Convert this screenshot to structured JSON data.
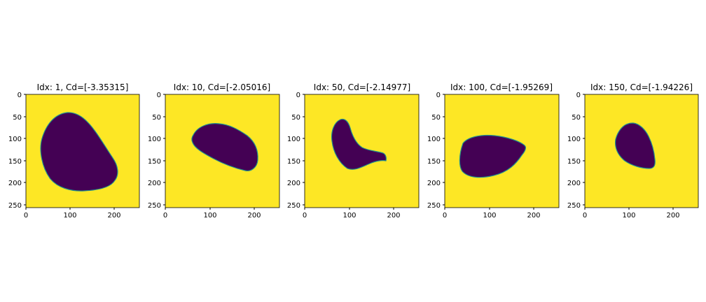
{
  "figure": {
    "panels": [
      {
        "title": "Idx: 1, Cd=[-3.35315]"
      },
      {
        "title": "Idx: 10, Cd=[-2.05016]"
      },
      {
        "title": "Idx: 50, Cd=[-2.14977]"
      },
      {
        "title": "Idx: 100, Cd=[-1.95269]"
      },
      {
        "title": "Idx: 150, Cd=[-1.94226]"
      }
    ],
    "x_ticks": [
      "0",
      "100",
      "200"
    ],
    "y_ticks": [
      "0",
      "50",
      "100",
      "150",
      "200",
      "250"
    ],
    "colors": {
      "background": "#fde725",
      "shape": "#440154",
      "edge": "#21918c"
    }
  }
}
